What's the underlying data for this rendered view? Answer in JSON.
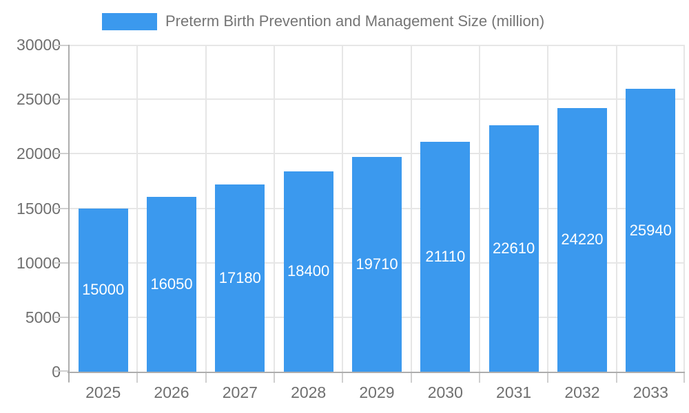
{
  "legend": {
    "label": "Preterm Birth Prevention and Management Size (million)"
  },
  "chart_data": {
    "type": "bar",
    "title": "Preterm Birth Prevention and Management Size (million)",
    "categories": [
      "2025",
      "2026",
      "2027",
      "2028",
      "2029",
      "2030",
      "2031",
      "2032",
      "2033"
    ],
    "values": [
      15000,
      16050,
      17180,
      18400,
      19710,
      21110,
      22610,
      24220,
      25940
    ],
    "xlabel": "",
    "ylabel": "",
    "ylim": [
      0,
      30000
    ],
    "ytick_interval": 5000,
    "yticks_top_to_bottom": [
      "30000",
      "25000",
      "20000",
      "15000",
      "10000",
      "5000",
      "0"
    ],
    "grid": true,
    "legend_position": "top",
    "bar_color": "#3B99EE",
    "bar_label_color": "#FFFFFF",
    "grid_color": "#E6E6E6",
    "axis_color": "#ADADAD",
    "tick_color": "#CFCFCF",
    "axis_text_color": "#6F6F6F",
    "legend_text_color": "#757575",
    "background_color": "#FFFFFF"
  }
}
